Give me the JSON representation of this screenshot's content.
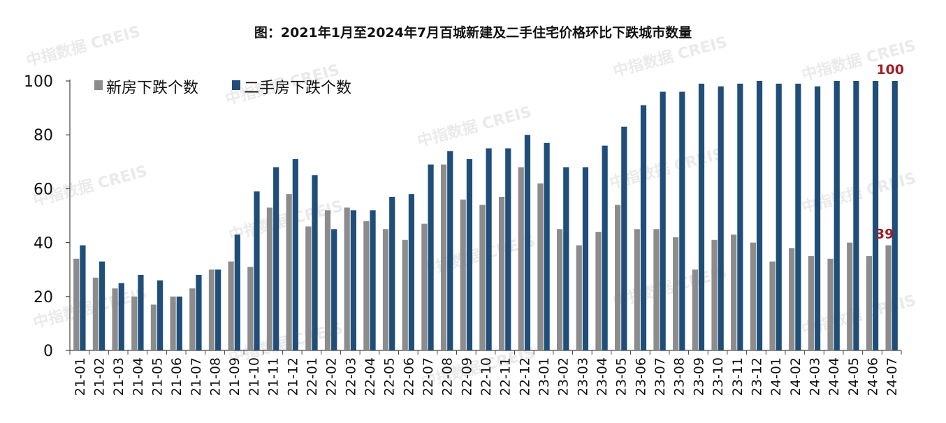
{
  "title": "图：2021年1月至2024年7月百城新建及二手住宅价格环比下跌城市数量",
  "watermark": "中指数据 CREIS",
  "colors": {
    "new": "#8c8c8c",
    "second": "#1f4e79",
    "end_label": "#a11d21",
    "axis": "#444444"
  },
  "chart_data": {
    "type": "bar",
    "title": "图：2021年1月至2024年7月百城新建及二手住宅价格环比下跌城市数量",
    "xlabel": "",
    "ylabel": "",
    "ylim": [
      0,
      100
    ],
    "yticks": [
      0,
      20,
      40,
      60,
      80,
      100
    ],
    "grid": false,
    "legend_position": "top-left",
    "categories": [
      "21-01",
      "21-02",
      "21-03",
      "21-04",
      "21-05",
      "21-06",
      "21-07",
      "21-08",
      "21-09",
      "21-10",
      "21-11",
      "21-12",
      "22-01",
      "22-02",
      "22-03",
      "22-04",
      "22-05",
      "22-06",
      "22-07",
      "22-08",
      "22-09",
      "22-10",
      "22-11",
      "22-12",
      "23-01",
      "23-02",
      "23-03",
      "23-04",
      "23-05",
      "23-06",
      "23-07",
      "23-08",
      "23-09",
      "23-10",
      "23-11",
      "23-12",
      "24-01",
      "24-02",
      "24-03",
      "24-04",
      "24-05",
      "24-06",
      "24-07"
    ],
    "series": [
      {
        "name": "新房下跌个数",
        "color": "#8c8c8c",
        "values": [
          34,
          27,
          23,
          20,
          17,
          20,
          23,
          30,
          33,
          31,
          53,
          58,
          46,
          52,
          53,
          48,
          45,
          41,
          47,
          69,
          56,
          54,
          57,
          68,
          62,
          45,
          39,
          44,
          54,
          45,
          45,
          42,
          30,
          41,
          43,
          40,
          33,
          38,
          35,
          34,
          40,
          35,
          39
        ]
      },
      {
        "name": "二手房下跌个数",
        "color": "#1f4e79",
        "values": [
          39,
          33,
          25,
          28,
          26,
          20,
          28,
          30,
          43,
          59,
          68,
          71,
          65,
          45,
          52,
          52,
          57,
          58,
          69,
          74,
          71,
          75,
          75,
          80,
          77,
          68,
          68,
          76,
          83,
          91,
          96,
          96,
          99,
          98,
          99,
          100,
          99,
          99,
          98,
          100,
          100,
          100,
          100
        ]
      }
    ],
    "annotations": [
      {
        "text": "100",
        "series": "二手房下跌个数",
        "category": "24-07",
        "value": 100
      },
      {
        "text": "39",
        "series": "新房下跌个数",
        "category": "24-07",
        "value": 39
      }
    ]
  }
}
